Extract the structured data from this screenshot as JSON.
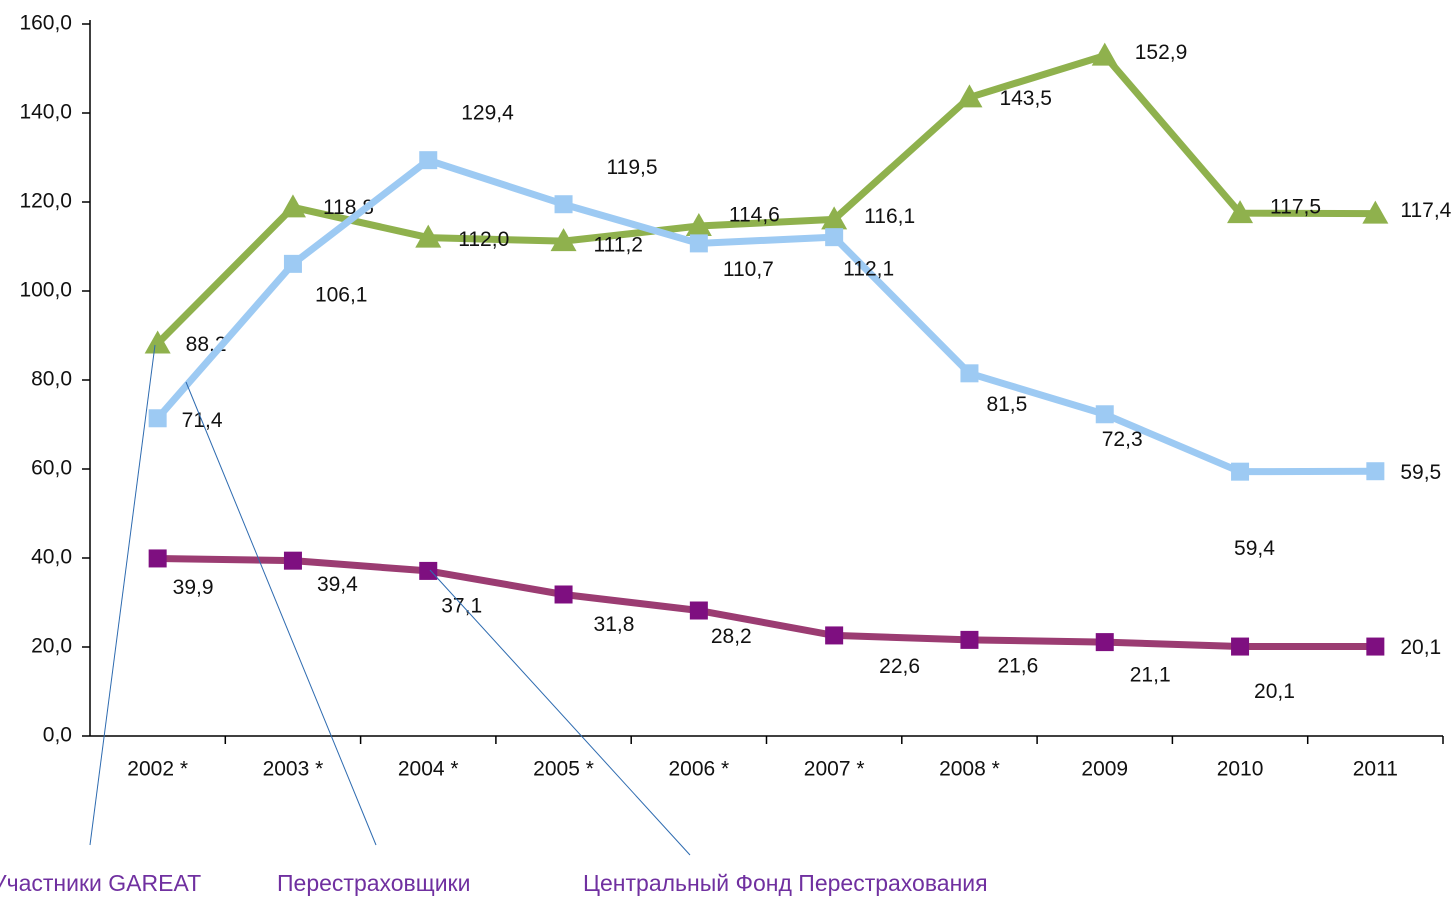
{
  "chart_data": {
    "type": "line",
    "categories": [
      "2002 *",
      "2003 *",
      "2004 *",
      "2005 *",
      "2006 *",
      "2007 *",
      "2008 *",
      "2009",
      "2010",
      "2011"
    ],
    "ylim": [
      0,
      160
    ],
    "yticks": [
      {
        "value": 0,
        "label": "0,0"
      },
      {
        "value": 20,
        "label": "20,0"
      },
      {
        "value": 40,
        "label": "40,0"
      },
      {
        "value": 60,
        "label": "60,0"
      },
      {
        "value": 80,
        "label": "80,0"
      },
      {
        "value": 100,
        "label": "100,0"
      },
      {
        "value": 120,
        "label": "120,0"
      },
      {
        "value": 140,
        "label": "140,0"
      },
      {
        "value": 160,
        "label": "160,0"
      }
    ],
    "series": [
      {
        "name": "Участники GAREAT",
        "color": "#8fb14d",
        "marker": "triangle",
        "values": [
          88.2,
          118.8,
          112.0,
          111.2,
          114.6,
          116.1,
          143.5,
          152.9,
          117.5,
          117.4
        ],
        "value_labels": [
          "88,2",
          "118,8",
          "112,0",
          "111,2",
          "114,6",
          "116,1",
          "143,5",
          "152,9",
          "117,5",
          "117,4"
        ]
      },
      {
        "name": "Перестраховщики",
        "color": "#9dcaf3",
        "marker": "square",
        "values": [
          71.4,
          106.1,
          129.4,
          119.5,
          110.7,
          112.1,
          81.5,
          72.3,
          59.4,
          59.5
        ],
        "value_labels": [
          "71,4",
          "106,1",
          "129,4",
          "119,5",
          "110,7",
          "112,1",
          "81,5",
          "72,3",
          "59,4",
          "59,5"
        ]
      },
      {
        "name": "Центральный Фонд Перестрахования",
        "color": "#9b3c72",
        "marker_color": "#7e0f80",
        "marker": "square",
        "values": [
          39.9,
          39.4,
          37.1,
          31.8,
          28.2,
          22.6,
          21.6,
          21.1,
          20.1,
          20.1
        ],
        "value_labels": [
          "39,9",
          "39,4",
          "37,1",
          "31,8",
          "28,2",
          "22,6",
          "21,6",
          "21,1",
          "20,1",
          "20,1"
        ]
      }
    ],
    "legend_color": "#7030a0"
  }
}
